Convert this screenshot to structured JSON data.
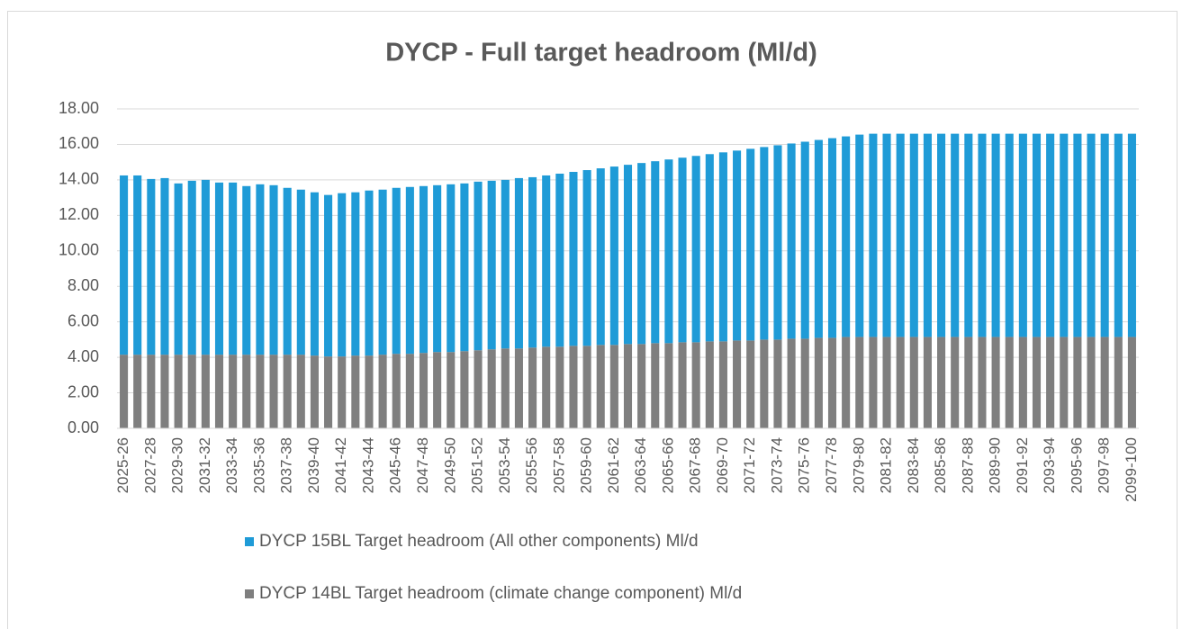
{
  "chart_data": {
    "type": "bar",
    "stacked": true,
    "title": "DYCP - Full target headroom (Ml/d)",
    "categories": [
      "2025-26",
      null,
      "2027-28",
      null,
      "2029-30",
      null,
      "2031-32",
      null,
      "2033-34",
      null,
      "2035-36",
      null,
      "2037-38",
      null,
      "2039-40",
      null,
      "2041-42",
      null,
      "2043-44",
      null,
      "2045-46",
      null,
      "2047-48",
      null,
      "2049-50",
      null,
      "2051-52",
      null,
      "2053-54",
      null,
      "2055-56",
      null,
      "2057-58",
      null,
      "2059-60",
      null,
      "2061-62",
      null,
      "2063-64",
      null,
      "2065-66",
      null,
      "2067-68",
      null,
      "2069-70",
      null,
      "2071-72",
      null,
      "2073-74",
      null,
      "2075-76",
      null,
      "2077-78",
      null,
      "2079-80",
      null,
      "2081-82",
      null,
      "2083-84",
      null,
      "2085-86",
      null,
      "2087-88",
      null,
      "2089-90",
      null,
      "2091-92",
      null,
      "2093-94",
      null,
      "2095-96",
      null,
      "2097-98",
      null,
      "2099-100"
    ],
    "series": [
      {
        "name": "DYCP 14BL Target headroom (climate change component) Ml/d",
        "color": "#7f7f7f",
        "values": [
          4.15,
          4.15,
          4.15,
          4.15,
          4.15,
          4.15,
          4.15,
          4.15,
          4.15,
          4.15,
          4.15,
          4.15,
          4.15,
          4.15,
          4.1,
          4.05,
          4.05,
          4.1,
          4.1,
          4.15,
          4.2,
          4.2,
          4.25,
          4.3,
          4.3,
          4.35,
          4.4,
          4.45,
          4.5,
          4.5,
          4.55,
          4.6,
          4.6,
          4.65,
          4.65,
          4.7,
          4.7,
          4.75,
          4.75,
          4.8,
          4.8,
          4.85,
          4.85,
          4.9,
          4.9,
          4.95,
          4.95,
          5.0,
          5.0,
          5.05,
          5.05,
          5.1,
          5.1,
          5.15,
          5.15,
          5.15,
          5.15,
          5.15,
          5.15,
          5.15,
          5.15,
          5.15,
          5.15,
          5.15,
          5.15,
          5.15,
          5.15,
          5.15,
          5.15,
          5.15,
          5.15,
          5.15,
          5.15,
          5.15,
          5.15
        ]
      },
      {
        "name": "DYCP 15BL Target headroom (All other components) Ml/d",
        "color": "#1f9bd7",
        "values": [
          10.1,
          10.1,
          9.9,
          9.95,
          9.65,
          9.8,
          9.85,
          9.7,
          9.7,
          9.5,
          9.6,
          9.55,
          9.4,
          9.3,
          9.2,
          9.1,
          9.2,
          9.2,
          9.3,
          9.3,
          9.35,
          9.4,
          9.4,
          9.4,
          9.45,
          9.45,
          9.5,
          9.5,
          9.5,
          9.6,
          9.6,
          9.65,
          9.75,
          9.8,
          9.9,
          9.95,
          10.05,
          10.1,
          10.2,
          10.25,
          10.35,
          10.4,
          10.5,
          10.55,
          10.65,
          10.7,
          10.8,
          10.85,
          10.95,
          11.0,
          11.1,
          11.15,
          11.25,
          11.3,
          11.4,
          11.45,
          11.45,
          11.45,
          11.45,
          11.45,
          11.45,
          11.45,
          11.45,
          11.45,
          11.45,
          11.45,
          11.45,
          11.45,
          11.45,
          11.45,
          11.45,
          11.45,
          11.45,
          11.45,
          11.45
        ]
      }
    ],
    "ylim": [
      0,
      18
    ],
    "yticks": [
      {
        "value": 0,
        "label": "0.00"
      },
      {
        "value": 2,
        "label": "2.00"
      },
      {
        "value": 4,
        "label": "4.00"
      },
      {
        "value": 6,
        "label": "6.00"
      },
      {
        "value": 8,
        "label": "8.00"
      },
      {
        "value": 10,
        "label": "10.00"
      },
      {
        "value": 12,
        "label": "12.00"
      },
      {
        "value": 14,
        "label": "14.00"
      },
      {
        "value": 16,
        "label": "16.00"
      },
      {
        "value": 18,
        "label": "18.00"
      }
    ],
    "grid": true,
    "legend": "bottom"
  }
}
